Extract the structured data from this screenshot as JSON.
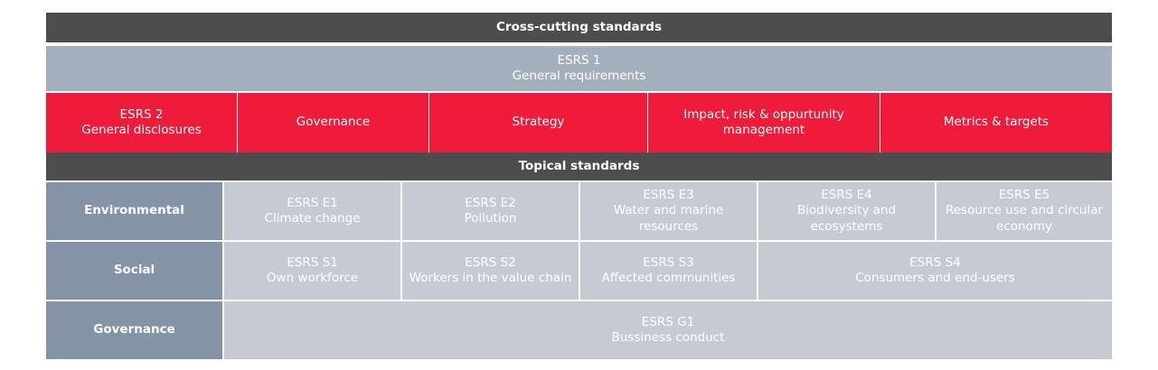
{
  "cross_cutting": {
    "header": "Cross-cutting standards",
    "esrs1": {
      "code": "ESRS 1",
      "name": "General requirements"
    },
    "esrs2": {
      "code": "ESRS 2",
      "name": "General disclosures"
    },
    "areas": {
      "governance": "Governance",
      "strategy": "Strategy",
      "impact_line1": "Impact, risk & oppurtunity",
      "impact_line2": "management",
      "metrics": "Metrics & targets"
    }
  },
  "topical": {
    "header": "Topical standards",
    "environmental": {
      "label": "Environmental",
      "e1": {
        "code": "ESRS E1",
        "name": "Climate change"
      },
      "e2": {
        "code": "ESRS E2",
        "name": "Pollution"
      },
      "e3": {
        "code": "ESRS E3",
        "line1": "Water and marine",
        "line2": "resources"
      },
      "e4": {
        "code": "ESRS E4",
        "line1": "Biodiversity and",
        "line2": "ecosystems"
      },
      "e5": {
        "code": "ESRS E5",
        "line1": "Resource use and circular",
        "line2": "economy"
      }
    },
    "social": {
      "label": "Social",
      "s1": {
        "code": "ESRS S1",
        "name": "Own workforce"
      },
      "s2": {
        "code": "ESRS S2",
        "name": "Workers in the value chain"
      },
      "s3": {
        "code": "ESRS S3",
        "name": "Affected communities"
      },
      "s4": {
        "code": "ESRS S4",
        "name": "Consumers and end-users"
      }
    },
    "governance": {
      "label": "Governance",
      "g1": {
        "code": "ESRS G1",
        "name": "Bussiness conduct"
      }
    }
  },
  "colors": {
    "dark_header": "#4d4d4d",
    "esrs1_band": "#a4afbd",
    "red_band": "#ee1b3b",
    "row_header": "#8593a6",
    "standard_cell": "#c5cad3"
  }
}
